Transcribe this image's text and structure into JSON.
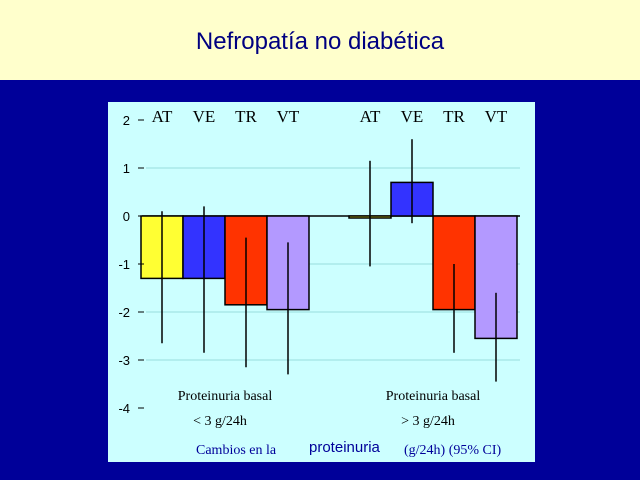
{
  "slide": {
    "title": "Nefropatía no diabética"
  },
  "chart_data": {
    "type": "bar",
    "ylim": [
      -4,
      2
    ],
    "yticks": [
      2,
      1,
      0,
      -1,
      -2,
      -3,
      -4
    ],
    "series_colors": {
      "AT": "#ffff33",
      "VE": "#3333ff",
      "TR": "#ff3300",
      "VT": "#b399ff"
    },
    "groups": [
      {
        "label": "Proteinuria  basal",
        "sublabel": "< 3 g/24h",
        "bars": [
          {
            "name": "AT",
            "value": -1.3,
            "ci": [
              -2.65,
              0.1
            ]
          },
          {
            "name": "VE",
            "value": -1.3,
            "ci": [
              -2.85,
              0.2
            ]
          },
          {
            "name": "TR",
            "value": -1.85,
            "ci": [
              -3.15,
              -0.45
            ]
          },
          {
            "name": "VT",
            "value": -1.95,
            "ci": [
              -3.3,
              -0.55
            ]
          }
        ]
      },
      {
        "label": "Proteinuria  basal",
        "sublabel": "> 3 g/24h",
        "bars": [
          {
            "name": "AT",
            "value": 0.0,
            "ci": [
              -1.05,
              1.15
            ]
          },
          {
            "name": "VE",
            "value": 0.7,
            "ci": [
              -0.15,
              1.6
            ]
          },
          {
            "name": "TR",
            "value": -1.95,
            "ci": [
              -2.85,
              -1.0
            ]
          },
          {
            "name": "VT",
            "value": -2.55,
            "ci": [
              -3.45,
              -1.6
            ]
          }
        ]
      }
    ],
    "footer": {
      "part1": "Cambios  en la",
      "part2": "proteinuria",
      "part3": "(g/24h) (95% CI)"
    }
  }
}
